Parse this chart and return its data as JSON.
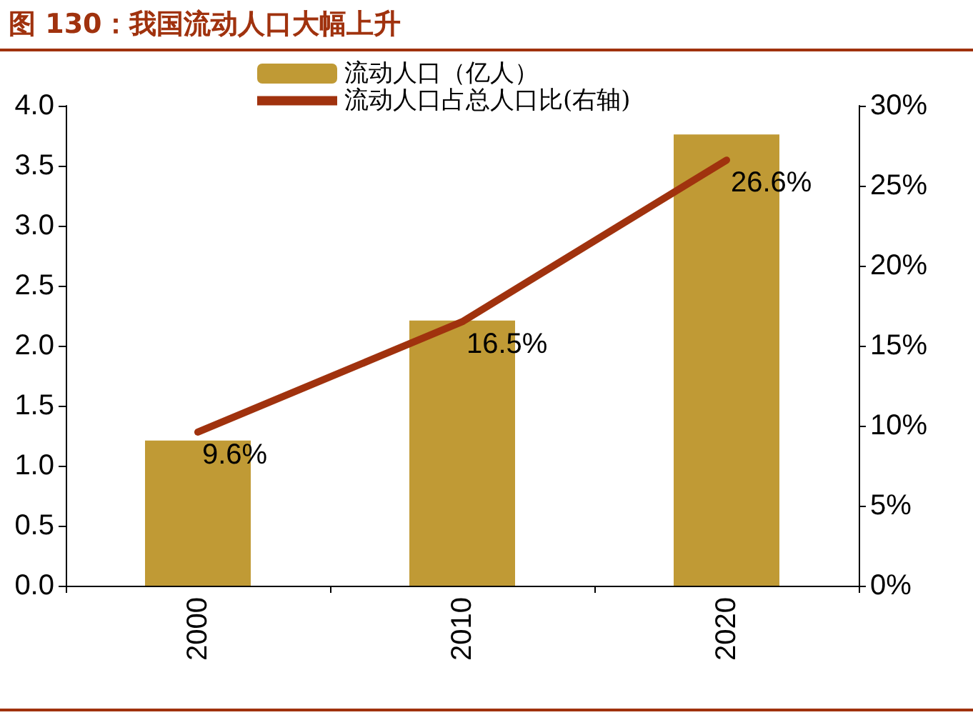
{
  "chart_data": {
    "type": "bar",
    "title": "图 130：我国流动人口大幅上升",
    "categories": [
      "2000",
      "2010",
      "2020"
    ],
    "series": [
      {
        "name": "流动人口（亿人）",
        "color": "#c09a35",
        "values": [
          1.21,
          2.21,
          3.76
        ]
      },
      {
        "name": "流动人口占总人口比(右轴)",
        "type": "line",
        "axis": "y2",
        "color": "#a0320e",
        "values": [
          9.6,
          16.5,
          26.6
        ],
        "value_labels": [
          "9.6%",
          "16.5%",
          "26.6%"
        ]
      }
    ],
    "ylim": [
      0,
      4
    ],
    "yticks": [
      {
        "value": 0,
        "label": "0.0"
      },
      0.5,
      {
        "value": 1,
        "label": "1.0"
      },
      1.5,
      {
        "value": 2,
        "label": "2.0"
      },
      2.5,
      {
        "value": 3,
        "label": "3.0"
      },
      3.5,
      {
        "value": 4,
        "label": "4.0"
      }
    ],
    "y2lim": [
      0,
      30
    ],
    "y2ticks": [
      {
        "value": 0,
        "label": "0%"
      },
      {
        "value": 5,
        "label": "5%"
      },
      {
        "value": 10,
        "label": "10%"
      },
      {
        "value": 15,
        "label": "15%"
      },
      {
        "value": 20,
        "label": "20%"
      },
      {
        "value": 25,
        "label": "25%"
      },
      {
        "value": 30,
        "label": "30%"
      }
    ],
    "legend": "top",
    "grid": false,
    "marker": "none",
    "line_style": "solid"
  }
}
